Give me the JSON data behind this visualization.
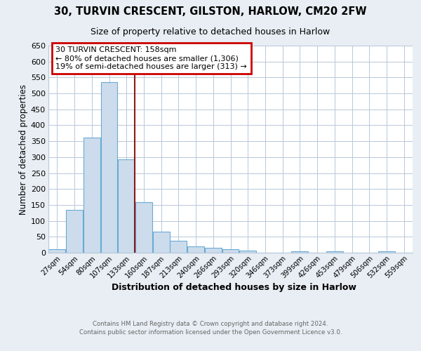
{
  "title_line1": "30, TURVIN CRESCENT, GILSTON, HARLOW, CM20 2FW",
  "title_line2": "Size of property relative to detached houses in Harlow",
  "xlabel": "Distribution of detached houses by size in Harlow",
  "ylabel": "Number of detached properties",
  "categories": [
    "27sqm",
    "54sqm",
    "80sqm",
    "107sqm",
    "133sqm",
    "160sqm",
    "187sqm",
    "213sqm",
    "240sqm",
    "266sqm",
    "293sqm",
    "320sqm",
    "346sqm",
    "373sqm",
    "399sqm",
    "426sqm",
    "453sqm",
    "479sqm",
    "506sqm",
    "532sqm",
    "559sqm"
  ],
  "values": [
    10,
    135,
    362,
    535,
    293,
    158,
    67,
    38,
    20,
    16,
    10,
    7,
    0,
    0,
    5,
    0,
    5,
    0,
    0,
    5,
    0
  ],
  "bar_color": "#ccdcec",
  "bar_edgecolor": "#6aaad4",
  "vline_x_index": 4,
  "vline_color": "#8b1a1a",
  "ylim": [
    0,
    650
  ],
  "yticks": [
    0,
    50,
    100,
    150,
    200,
    250,
    300,
    350,
    400,
    450,
    500,
    550,
    600,
    650
  ],
  "annotation_text": "30 TURVIN CRESCENT: 158sqm\n← 80% of detached houses are smaller (1,306)\n19% of semi-detached houses are larger (313) →",
  "annotation_box_color": "#cc0000",
  "footnote_line1": "Contains HM Land Registry data © Crown copyright and database right 2024.",
  "footnote_line2": "Contains public sector information licensed under the Open Government Licence v3.0.",
  "bg_color": "#e8eef4",
  "plot_bg_color": "#ffffff",
  "grid_color": "#b8c8d8"
}
